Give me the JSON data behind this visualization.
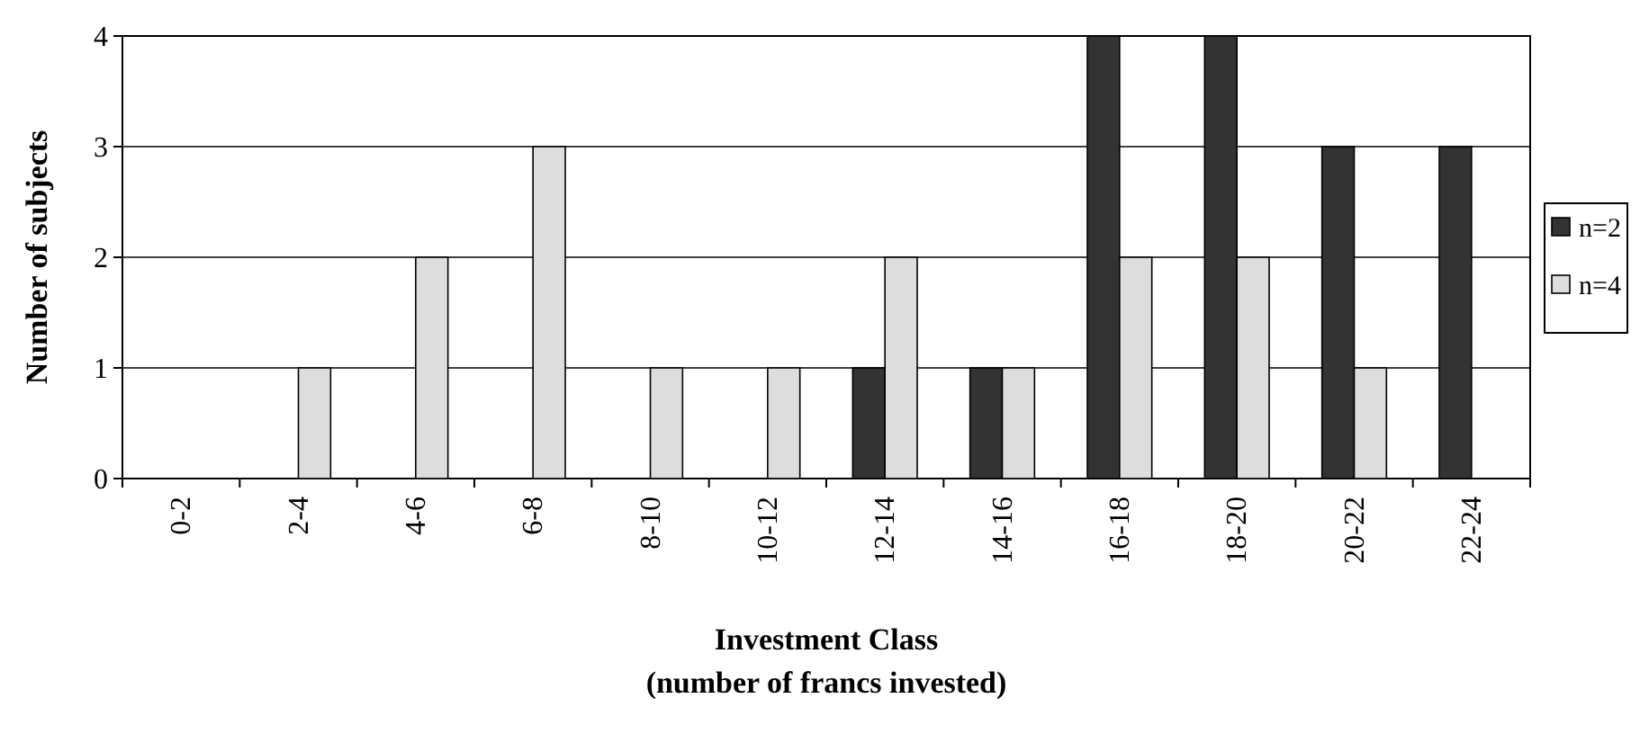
{
  "chart_data": {
    "type": "bar",
    "xlabel": "Investment Class\n(number of francs invested)",
    "ylabel": "Number of subjects",
    "categories": [
      "0-2",
      "2-4",
      "4-6",
      "6-8",
      "8-10",
      "10-12",
      "12-14",
      "14-16",
      "16-18",
      "18-20",
      "20-22",
      "22-24"
    ],
    "series": [
      {
        "name": "n=2",
        "color": "#333333",
        "values": [
          0,
          0,
          0,
          0,
          0,
          0,
          1,
          1,
          4,
          4,
          3,
          3
        ]
      },
      {
        "name": "n=4",
        "color": "#dddddd",
        "values": [
          0,
          1,
          2,
          3,
          1,
          1,
          2,
          1,
          2,
          2,
          1,
          0
        ]
      }
    ],
    "ylim": [
      0,
      4
    ],
    "yticks": [
      0,
      1,
      2,
      3,
      4
    ],
    "grid": "y",
    "legend": "right"
  }
}
